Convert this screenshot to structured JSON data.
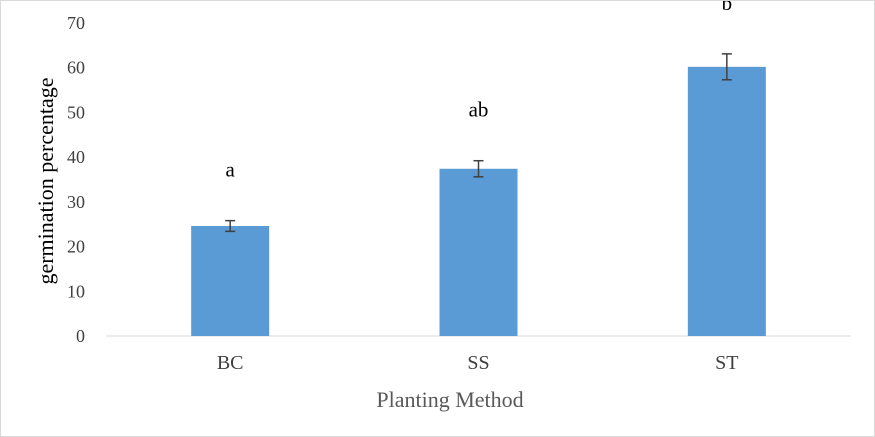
{
  "chart_data": {
    "type": "bar",
    "categories": [
      "BC",
      "SS",
      "ST"
    ],
    "values": [
      24.6,
      37.4,
      60.2
    ],
    "error": [
      1.2,
      1.8,
      2.9
    ],
    "significance_labels": [
      "a",
      "ab",
      "b"
    ],
    "xlabel": "Planting Method",
    "ylabel": "germination percentage",
    "ylim": [
      0,
      70
    ],
    "yticks": [
      0,
      10,
      20,
      30,
      40,
      50,
      60,
      70
    ],
    "grid": false,
    "legend": "none",
    "bar_color": "#5b9bd5",
    "errorbar_color": "#404040"
  }
}
